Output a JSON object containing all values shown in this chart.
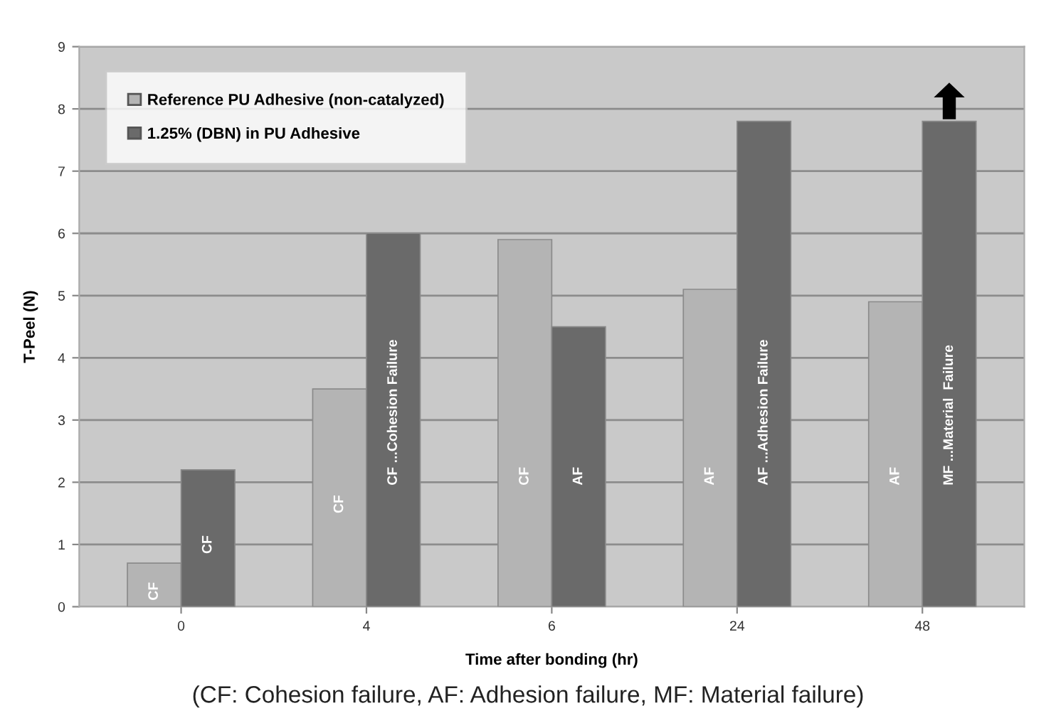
{
  "chart_data": {
    "type": "bar",
    "xlabel": "Time after bonding (hr)",
    "ylabel": "T-Peel (N)",
    "categories": [
      "0",
      "4",
      "6",
      "24",
      "48"
    ],
    "series": [
      {
        "name": "Reference PU Adhesive (non-catalyzed)",
        "color": "#b4b4b4",
        "values": [
          0.7,
          3.5,
          5.9,
          5.1,
          4.9
        ],
        "value_labels": [
          "CF",
          "CF",
          "CF",
          "AF",
          "AF"
        ]
      },
      {
        "name": "1.25% (DBN) in PU Adhesive",
        "color": "#6a6a6a",
        "values": [
          2.2,
          6.0,
          4.5,
          7.8,
          7.8
        ],
        "value_labels": [
          "CF",
          "CF ...Cohesion Failure",
          "AF",
          "AF ...Adhesion Failure",
          "MF ...Material  Failure"
        ]
      }
    ],
    "ylim": [
      0,
      9
    ],
    "yticks": [
      0,
      1,
      2,
      3,
      4,
      5,
      6,
      7,
      8,
      9
    ],
    "grid": "y",
    "legend": "top left",
    "annotations": [
      "(CF: Cohesion failure, AF: Adhesion failure, MF: Material failure)"
    ]
  }
}
